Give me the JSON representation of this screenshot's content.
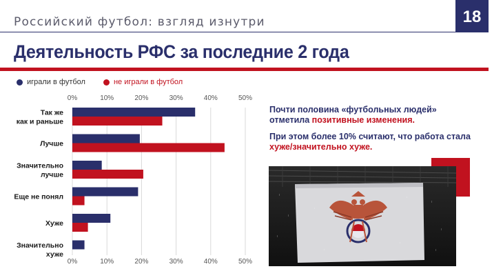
{
  "header": {
    "subtitle": "Российский футбол: взгляд изнутри",
    "page_number": "18",
    "title": "Деятельность РФС за последние 2 года"
  },
  "legend": [
    {
      "label": "играли в футбол",
      "color": "#2a2f6b"
    },
    {
      "label": "не играли в футбол",
      "color": "#c1121f"
    }
  ],
  "chart_data": {
    "type": "bar",
    "orientation": "horizontal",
    "categories": [
      [
        "Так же",
        "как и раньше"
      ],
      [
        "Лучше"
      ],
      [
        "Значительно",
        "лучше"
      ],
      [
        "Еще не понял"
      ],
      [
        "Хуже"
      ],
      [
        "Значительно",
        "хуже"
      ]
    ],
    "series": [
      {
        "name": "играли в футбол",
        "color": "#2a2f6b",
        "values": [
          35.5,
          19.5,
          8.5,
          19,
          11,
          3.5
        ]
      },
      {
        "name": "не играли в футбол",
        "color": "#c1121f",
        "values": [
          26,
          44,
          20.5,
          3.5,
          4.5,
          0
        ]
      }
    ],
    "xlim": [
      0,
      50
    ],
    "xticks": [
      "0%",
      "10%",
      "20%",
      "30%",
      "40%",
      "50%"
    ],
    "grid": true,
    "legend_position": "top-left"
  },
  "commentary": {
    "p1_a": "Почти половина «футбольных людей» отметила ",
    "p1_b": "позитивные изменения.",
    "p2_a": "При этом более 10% считают, что работа стала ",
    "p2_b": "хуже/значительно хуже."
  },
  "colors": {
    "navy": "#2a2f6b",
    "red": "#c1121f"
  },
  "photo": {
    "icon": "rfs-flag-photo"
  }
}
